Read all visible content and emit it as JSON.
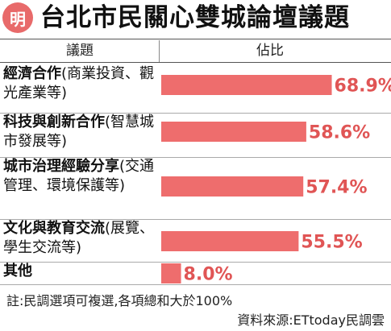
{
  "header": {
    "logo_text": "明",
    "title": "台北市民關心雙城論壇議題"
  },
  "columns": {
    "topic": "議題",
    "share": "佔比"
  },
  "chart_data": {
    "type": "bar",
    "orientation": "horizontal",
    "title": "台北市民關心雙城論壇議題",
    "categories": [
      "經濟合作(商業投資、觀光產業等)",
      "科技與創新合作(智慧城市發展等)",
      "城市治理經驗分享(交通管理、環境保護等)",
      "文化與教育交流(展覽、學生交流等)",
      "其他"
    ],
    "values": [
      68.9,
      58.6,
      57.4,
      55.5,
      8.0
    ],
    "value_labels": [
      "68.9%",
      "58.6%",
      "57.4%",
      "55.5%",
      "8.0%"
    ],
    "xlim": [
      0,
      100
    ],
    "bar_color": "#ee6d6d",
    "label_color": "#e05555",
    "grid": false,
    "legend": "none"
  },
  "rows": [
    {
      "lead": "經濟合作",
      "rest": "(商業投資、觀光產業等)"
    },
    {
      "lead": "科技與創新合作",
      "rest": "(智慧城市發展等)"
    },
    {
      "lead": "城市治理經驗分享",
      "rest": "(交通管理、環境保護等)"
    },
    {
      "lead": "文化與教育交流",
      "rest": "(展覽、學生交流等)"
    },
    {
      "lead": "其他",
      "rest": ""
    }
  ],
  "footer": {
    "note": "註:民調選項可複選,各項總和大於100%",
    "source": "資料來源:ETtoday民調雲"
  }
}
